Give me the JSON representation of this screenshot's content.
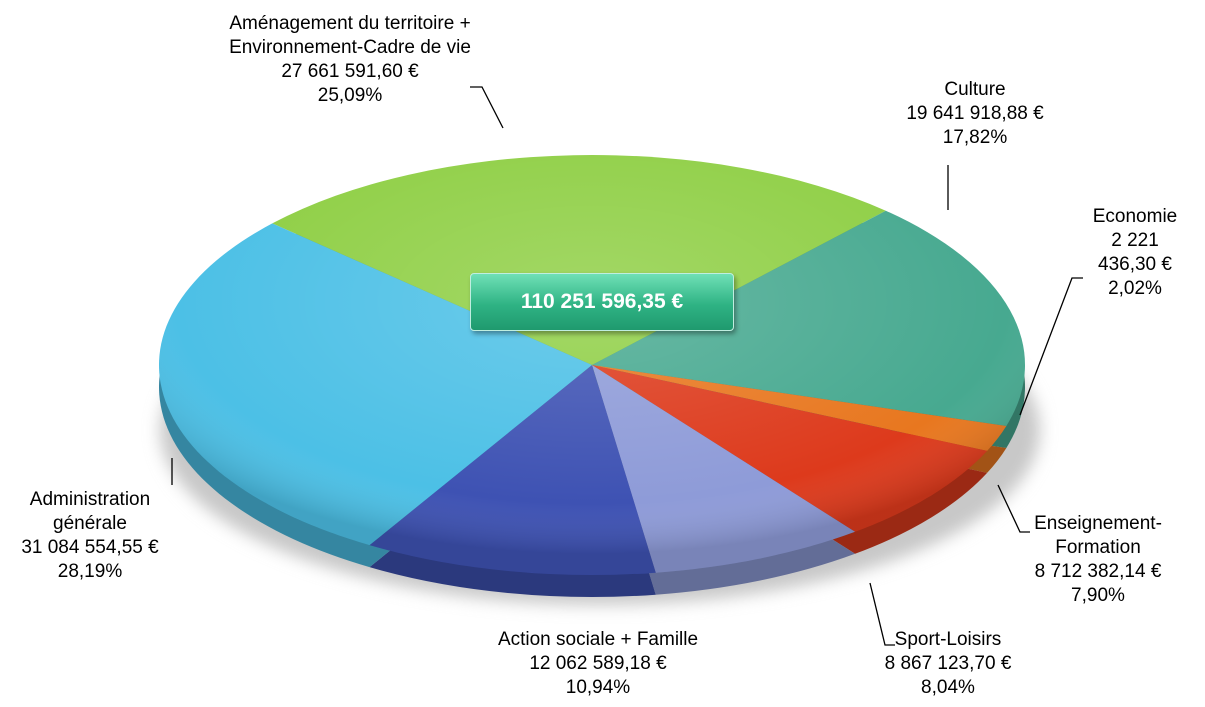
{
  "chart_data": {
    "type": "pie",
    "categories": [
      "Aménagement du territoire +\nEnvironnement-Cadre de vie",
      "Culture",
      "Economie",
      "Enseignement-\nFormation",
      "Sport-Loisirs",
      "Action sociale + Famille",
      "Administration\ngénérale"
    ],
    "amount_labels": [
      "27 661 591,60 €",
      "19 641 918,88 €",
      "2 221 436,30 €",
      "8 712 382,14 €",
      "8 867 123,70 €",
      "12 062 589,18 €",
      "31 084 554,55 €"
    ],
    "values": [
      25.09,
      17.82,
      2.02,
      7.9,
      8.04,
      10.94,
      28.19
    ],
    "value_labels": [
      "25,09%",
      "17,82%",
      "2,02%",
      "7,90%",
      "8,04%",
      "10,94%",
      "28,19%"
    ],
    "colors": [
      "#8fcf45",
      "#47a990",
      "#e8771f",
      "#dd3a1c",
      "#8e9bd8",
      "#3e52b3",
      "#4cc0e6"
    ],
    "center_label": "110 251 596,35 €"
  }
}
